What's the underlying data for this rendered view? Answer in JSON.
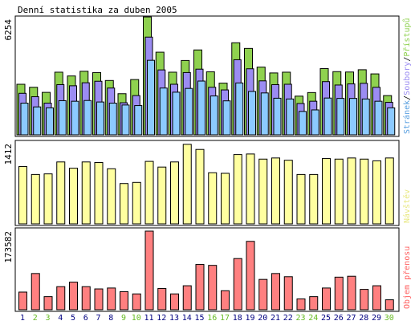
{
  "chart_data": {
    "type": "bar",
    "title": "Denní statistika za duben 2005",
    "categories": [
      "1",
      "2",
      "3",
      "4",
      "5",
      "6",
      "7",
      "8",
      "9",
      "10",
      "11",
      "12",
      "13",
      "14",
      "15",
      "16",
      "17",
      "18",
      "19",
      "20",
      "21",
      "22",
      "23",
      "24",
      "25",
      "26",
      "27",
      "28",
      "29",
      "30"
    ],
    "weekend_days": [
      "2",
      "3",
      "9",
      "10",
      "16",
      "17",
      "23",
      "24",
      "30"
    ],
    "colors": {
      "access": "#8fd14f",
      "files": "#9b8cf2",
      "pages": "#8ccaff",
      "visitors": "#ffffa0",
      "transfer": "#ff8080",
      "weekday_label": "#000080",
      "weekend_label": "#66bb22",
      "axis": "#000000"
    },
    "panels": [
      {
        "id": "hits",
        "max_label": "6254",
        "ylim": [
          0,
          6254
        ],
        "legend": [
          {
            "text": "Stránek",
            "color": "#5aa0e0"
          },
          {
            "text": "Soubory",
            "color": "#9b8cf2"
          },
          {
            "text": "Přístupů",
            "color": "#8fd14f"
          }
        ],
        "series": [
          {
            "name": "Přístupů",
            "values": [
              2680,
              2520,
              2250,
              3320,
              3120,
              3370,
              3300,
              2880,
              2180,
              2930,
              6250,
              4380,
              3320,
              3940,
              4500,
              3340,
              2740,
              4880,
              4580,
              3590,
              3280,
              3320,
              2050,
              2240,
              3510,
              3350,
              3330,
              3450,
              3230,
              2080
            ]
          },
          {
            "name": "Soubory",
            "values": [
              2200,
              2020,
              1680,
              2660,
              2600,
              2760,
              2840,
              2480,
              1700,
              2080,
              5180,
              3440,
              2680,
              3300,
              3480,
              2520,
              2380,
              3980,
              3500,
              2860,
              2660,
              2680,
              1660,
              1780,
              2820,
              2640,
              2700,
              2730,
              2520,
              1720
            ]
          },
          {
            "name": "Stránek",
            "values": [
              1680,
              1480,
              1430,
              1810,
              1780,
              1820,
              1740,
              1680,
              1580,
              1550,
              3950,
              2480,
              2260,
              2460,
              2850,
              2060,
              1800,
              2750,
              2300,
              2220,
              1940,
              1900,
              1240,
              1320,
              1950,
              1930,
              1930,
              1900,
              1780,
              1430
            ]
          }
        ]
      },
      {
        "id": "visitors",
        "max_label": "1412",
        "ylim": [
          0,
          1412
        ],
        "legend": [
          {
            "text": "Návštěv",
            "color": "#e8e880"
          }
        ],
        "series": [
          {
            "name": "Návštěv",
            "values": [
              1010,
              870,
              880,
              1090,
              980,
              1090,
              1080,
              970,
              710,
              730,
              1100,
              1000,
              1090,
              1400,
              1310,
              900,
              890,
              1220,
              1230,
              1140,
              1160,
              1120,
              870,
              870,
              1150,
              1140,
              1160,
              1140,
              1110,
              1160
            ]
          }
        ]
      },
      {
        "id": "transfer",
        "max_label": "173582",
        "ylim": [
          0,
          173582
        ],
        "legend": [
          {
            "text": "Objem přenosu",
            "color": "#ff6060"
          }
        ],
        "series": [
          {
            "name": "Objem přenosu",
            "values": [
              39000,
              80000,
              29000,
              51000,
              61000,
              51000,
              46000,
              48000,
              40000,
              35000,
              173582,
              47000,
              35000,
              53000,
              100000,
              98000,
              42000,
              113000,
              151000,
              67000,
              80000,
              73000,
              24000,
              29000,
              48000,
              72000,
              74000,
              45000,
              53000,
              22000
            ]
          }
        ]
      }
    ]
  }
}
